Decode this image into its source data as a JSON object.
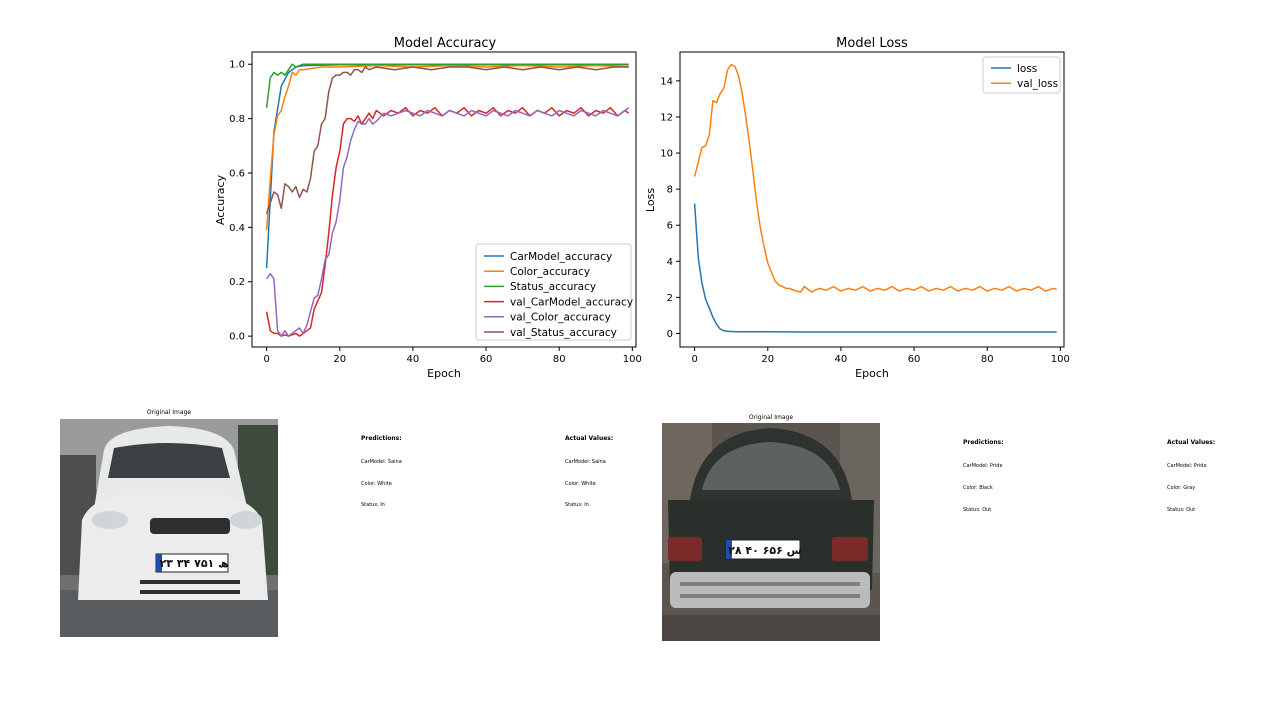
{
  "chart_data": [
    {
      "type": "line",
      "title": "Model Accuracy",
      "xlabel": "Epoch",
      "ylabel": "Accuracy",
      "xlim": [
        -4,
        101
      ],
      "ylim": [
        -0.04,
        1.045
      ],
      "xticks": [
        0,
        20,
        40,
        60,
        80,
        100
      ],
      "yticks": [
        0.0,
        0.2,
        0.4,
        0.6,
        0.8,
        1.0
      ],
      "xtick_labels": [
        "0",
        "20",
        "40",
        "60",
        "80",
        "100"
      ],
      "ytick_labels": [
        "0.0",
        "0.2",
        "0.4",
        "0.6",
        "0.8",
        "1.0"
      ],
      "legend": "lower-right",
      "grid": false,
      "series": [
        {
          "name": "CarModel_accuracy",
          "color": "#1f77b4",
          "x": [
            0,
            2,
            4,
            6,
            8,
            10,
            20,
            40,
            60,
            80,
            99
          ],
          "y": [
            0.25,
            0.75,
            0.92,
            0.97,
            0.99,
            0.995,
            0.998,
            0.998,
            0.998,
            0.998,
            0.998
          ]
        },
        {
          "name": "Color_accuracy",
          "color": "#ff7f0e",
          "x": [
            0,
            1,
            2,
            3,
            4,
            5,
            6,
            7,
            8,
            9,
            10,
            15,
            20,
            30,
            40,
            50,
            60,
            70,
            80,
            90,
            99
          ],
          "y": [
            0.39,
            0.58,
            0.74,
            0.81,
            0.83,
            0.88,
            0.92,
            0.97,
            0.96,
            0.98,
            0.98,
            0.99,
            0.99,
            0.995,
            0.99,
            0.995,
            0.99,
            0.995,
            0.99,
            0.995,
            0.99
          ]
        },
        {
          "name": "Status_accuracy",
          "color": "#2ca02c",
          "x": [
            0,
            1,
            2,
            3,
            4,
            5,
            6,
            7,
            8,
            10,
            20,
            40,
            60,
            80,
            99
          ],
          "y": [
            0.84,
            0.95,
            0.97,
            0.96,
            0.97,
            0.96,
            0.98,
            1.0,
            0.99,
            1.0,
            1.0,
            1.0,
            1.0,
            1.0,
            1.0
          ]
        },
        {
          "name": "val_CarModel_accuracy",
          "color": "#d62728",
          "x": [
            0,
            1,
            2,
            3,
            4,
            5,
            6,
            7,
            8,
            9,
            10,
            11,
            12,
            13,
            14,
            15,
            16,
            17,
            18,
            19,
            20,
            21,
            22,
            23,
            24,
            25,
            26,
            27,
            28,
            29,
            30,
            32,
            34,
            36,
            38,
            40,
            42,
            44,
            46,
            48,
            50,
            52,
            54,
            56,
            58,
            60,
            62,
            64,
            66,
            68,
            70,
            72,
            74,
            76,
            78,
            80,
            82,
            84,
            86,
            88,
            90,
            92,
            94,
            96,
            98,
            99
          ],
          "y": [
            0.09,
            0.02,
            0.01,
            0.01,
            0.0,
            0.005,
            0.0,
            0.005,
            0.01,
            0.0,
            0.01,
            0.02,
            0.03,
            0.1,
            0.13,
            0.16,
            0.26,
            0.38,
            0.52,
            0.62,
            0.68,
            0.78,
            0.8,
            0.8,
            0.79,
            0.81,
            0.78,
            0.8,
            0.82,
            0.8,
            0.83,
            0.81,
            0.83,
            0.82,
            0.84,
            0.81,
            0.83,
            0.82,
            0.84,
            0.81,
            0.83,
            0.82,
            0.84,
            0.81,
            0.83,
            0.82,
            0.84,
            0.81,
            0.83,
            0.82,
            0.84,
            0.81,
            0.83,
            0.82,
            0.84,
            0.81,
            0.83,
            0.82,
            0.84,
            0.81,
            0.83,
            0.82,
            0.84,
            0.81,
            0.83,
            0.82
          ]
        },
        {
          "name": "val_Color_accuracy",
          "color": "#9467bd",
          "x": [
            0,
            1,
            2,
            3,
            4,
            5,
            6,
            7,
            8,
            9,
            10,
            11,
            12,
            13,
            14,
            15,
            16,
            17,
            18,
            19,
            20,
            21,
            22,
            23,
            24,
            25,
            26,
            27,
            28,
            29,
            30,
            32,
            34,
            36,
            38,
            40,
            42,
            44,
            46,
            48,
            50,
            52,
            54,
            56,
            58,
            60,
            62,
            64,
            66,
            68,
            70,
            72,
            74,
            76,
            78,
            80,
            82,
            84,
            86,
            88,
            90,
            92,
            94,
            96,
            98,
            99
          ],
          "y": [
            0.21,
            0.23,
            0.21,
            0.02,
            0.0,
            0.02,
            0.0,
            0.01,
            0.02,
            0.03,
            0.01,
            0.04,
            0.09,
            0.14,
            0.15,
            0.21,
            0.28,
            0.3,
            0.38,
            0.42,
            0.5,
            0.62,
            0.66,
            0.72,
            0.76,
            0.79,
            0.78,
            0.78,
            0.8,
            0.78,
            0.79,
            0.82,
            0.81,
            0.82,
            0.83,
            0.82,
            0.81,
            0.83,
            0.82,
            0.81,
            0.83,
            0.82,
            0.81,
            0.83,
            0.82,
            0.81,
            0.83,
            0.82,
            0.81,
            0.83,
            0.82,
            0.81,
            0.83,
            0.82,
            0.81,
            0.83,
            0.82,
            0.81,
            0.83,
            0.82,
            0.81,
            0.83,
            0.82,
            0.81,
            0.83,
            0.84
          ]
        },
        {
          "name": "val_Status_accuracy",
          "color": "#8c564b",
          "x": [
            0,
            1,
            2,
            3,
            4,
            5,
            6,
            7,
            8,
            9,
            10,
            11,
            12,
            13,
            14,
            15,
            16,
            17,
            18,
            19,
            20,
            21,
            22,
            23,
            24,
            25,
            26,
            27,
            28,
            30,
            35,
            40,
            45,
            50,
            55,
            60,
            65,
            70,
            75,
            80,
            85,
            90,
            95,
            99
          ],
          "y": [
            0.45,
            0.49,
            0.53,
            0.52,
            0.47,
            0.56,
            0.55,
            0.53,
            0.55,
            0.51,
            0.54,
            0.53,
            0.58,
            0.68,
            0.7,
            0.78,
            0.8,
            0.9,
            0.95,
            0.96,
            0.96,
            0.97,
            0.97,
            0.96,
            0.98,
            0.98,
            0.97,
            0.99,
            0.98,
            0.99,
            0.98,
            0.99,
            0.98,
            0.99,
            0.99,
            0.98,
            0.99,
            0.98,
            0.99,
            0.98,
            0.99,
            0.98,
            0.99,
            0.99
          ]
        }
      ]
    },
    {
      "type": "line",
      "title": "Model Loss",
      "xlabel": "Epoch",
      "ylabel": "Loss",
      "xlim": [
        -4,
        101
      ],
      "ylim": [
        -0.75,
        15.6
      ],
      "xticks": [
        0,
        20,
        40,
        60,
        80,
        100
      ],
      "yticks": [
        0,
        2,
        4,
        6,
        8,
        10,
        12,
        14
      ],
      "xtick_labels": [
        "0",
        "20",
        "40",
        "60",
        "80",
        "100"
      ],
      "ytick_labels": [
        "0",
        "2",
        "4",
        "6",
        "8",
        "10",
        "12",
        "14"
      ],
      "legend": "upper-right",
      "grid": false,
      "series": [
        {
          "name": "loss",
          "color": "#1f77b4",
          "x": [
            0,
            1,
            2,
            3,
            4,
            5,
            6,
            7,
            8,
            9,
            10,
            12,
            15,
            20,
            30,
            40,
            50,
            60,
            70,
            80,
            90,
            99
          ],
          "y": [
            7.2,
            4.2,
            2.8,
            1.9,
            1.4,
            0.9,
            0.5,
            0.25,
            0.15,
            0.12,
            0.11,
            0.1,
            0.09,
            0.09,
            0.08,
            0.08,
            0.08,
            0.08,
            0.08,
            0.08,
            0.08,
            0.08
          ]
        },
        {
          "name": "val_loss",
          "color": "#ff7f0e",
          "x": [
            0,
            1,
            2,
            3,
            4,
            5,
            6,
            7,
            8,
            9,
            10,
            11,
            12,
            13,
            14,
            15,
            16,
            17,
            18,
            19,
            20,
            21,
            22,
            23,
            24,
            25,
            26,
            27,
            28,
            29,
            30,
            32,
            34,
            36,
            38,
            40,
            42,
            44,
            46,
            48,
            50,
            52,
            54,
            56,
            58,
            60,
            62,
            64,
            66,
            68,
            70,
            72,
            74,
            76,
            78,
            80,
            82,
            84,
            86,
            88,
            90,
            92,
            94,
            96,
            98,
            99
          ],
          "y": [
            8.7,
            9.5,
            10.3,
            10.4,
            11.0,
            12.9,
            12.8,
            13.3,
            13.6,
            14.6,
            14.9,
            14.8,
            14.3,
            13.3,
            12.0,
            10.5,
            8.9,
            7.2,
            5.8,
            4.8,
            3.9,
            3.4,
            2.9,
            2.7,
            2.6,
            2.5,
            2.5,
            2.4,
            2.35,
            2.3,
            2.6,
            2.3,
            2.5,
            2.4,
            2.6,
            2.35,
            2.5,
            2.4,
            2.6,
            2.35,
            2.5,
            2.4,
            2.6,
            2.35,
            2.5,
            2.4,
            2.6,
            2.35,
            2.5,
            2.4,
            2.6,
            2.35,
            2.5,
            2.4,
            2.6,
            2.35,
            2.5,
            2.4,
            2.6,
            2.35,
            2.5,
            2.4,
            2.6,
            2.35,
            2.5,
            2.45
          ]
        }
      ]
    }
  ],
  "results": [
    {
      "image_title": "Original Image",
      "predictions_heading": "Predictions:",
      "actual_heading": "Actual Values:",
      "pred_carmodel": "CarModel: Saina",
      "pred_color": "Color: White",
      "pred_status": "Status: In",
      "act_carmodel": "CarModel: Saina",
      "act_color": "Color: White",
      "act_status": "Status: In",
      "plate": "۲۳ ھ ۷۵۱ ۳۴",
      "car_body_color": "#ececec"
    },
    {
      "image_title": "Original Image",
      "predictions_heading": "Predictions:",
      "actual_heading": "Actual Values:",
      "pred_carmodel": "CarModel: Pride",
      "pred_color": "Color: Black",
      "pred_status": "Status: Out",
      "act_carmodel": "CarModel: Pride",
      "act_color": "Color: Gray",
      "act_status": "Status: Out",
      "plate": "۲۸ س ۶۵۶ ۴۰",
      "car_body_color": "#2a2f2c"
    }
  ]
}
